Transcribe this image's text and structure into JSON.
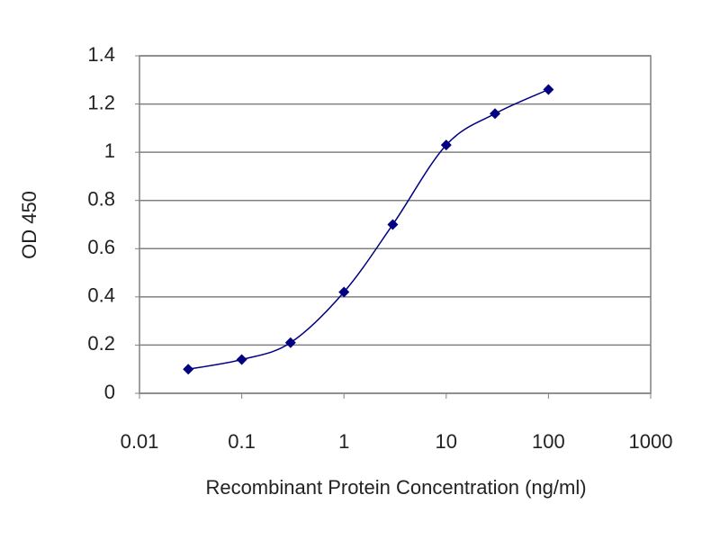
{
  "chart_data": {
    "type": "line",
    "x_label": "Recombinant Protein Concentration (ng/ml)",
    "y_label": "OD 450",
    "x": [
      0.03,
      0.1,
      0.3,
      1,
      3,
      10,
      30,
      100
    ],
    "series": [
      {
        "color": "#000080",
        "values": [
          0.1,
          0.14,
          0.21,
          0.42,
          0.7,
          1.03,
          1.16,
          1.26
        ]
      }
    ],
    "xscale": "log",
    "xlim": [
      0.01,
      1000
    ],
    "xticks": [
      0.01,
      0.1,
      1,
      10,
      100,
      1000
    ],
    "ylim": [
      0,
      1.4
    ],
    "yticks": [
      0,
      0.2,
      0.4,
      0.6,
      0.8,
      1,
      1.2,
      1.4
    ],
    "grid": true,
    "markers": true
  }
}
